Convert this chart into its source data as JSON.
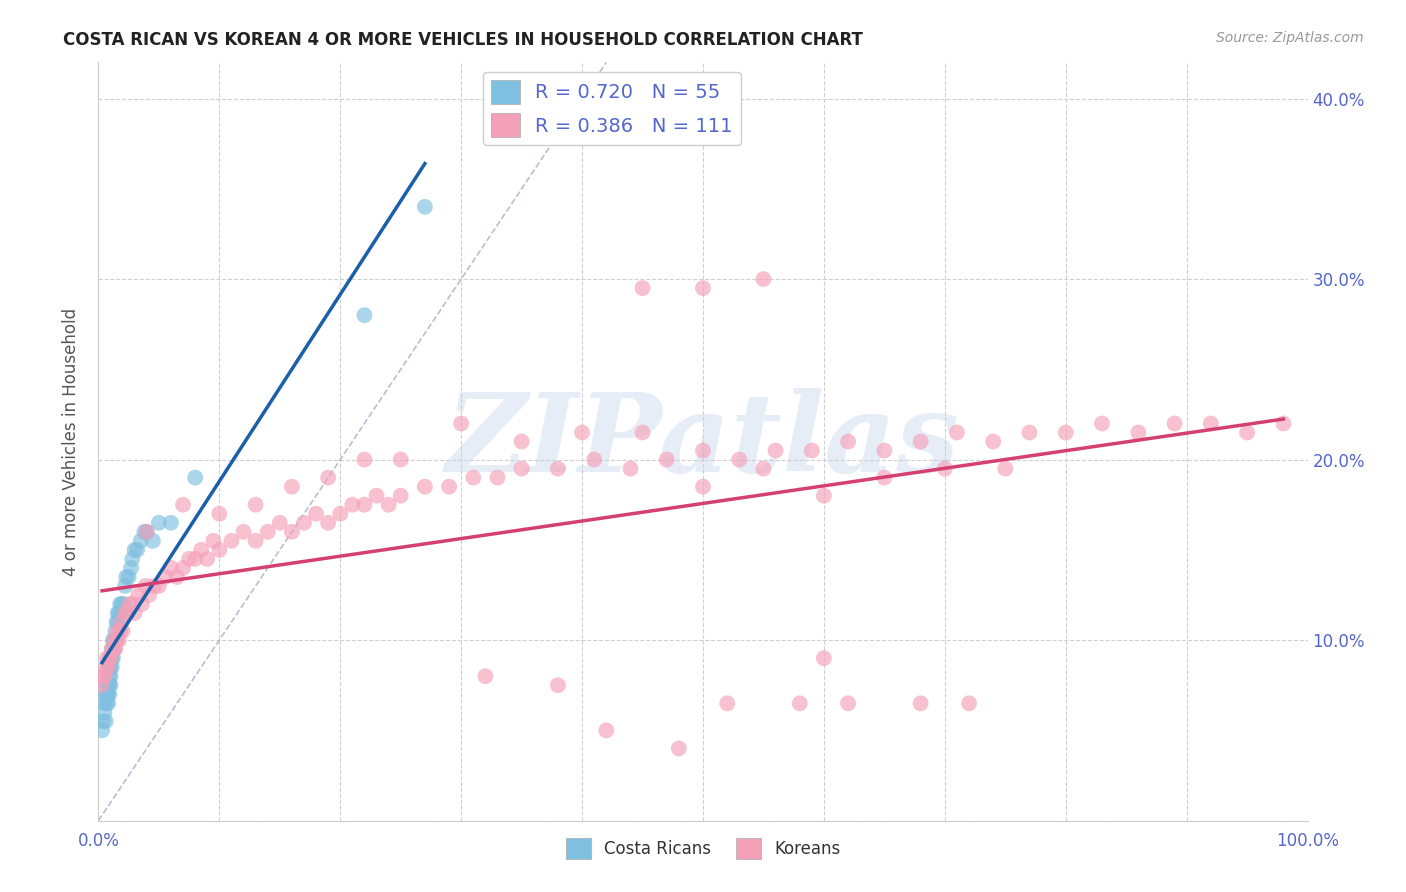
{
  "title": "COSTA RICAN VS KOREAN 4 OR MORE VEHICLES IN HOUSEHOLD CORRELATION CHART",
  "source": "Source: ZipAtlas.com",
  "ylabel": "4 or more Vehicles in Household",
  "watermark": "ZIPatlas",
  "xlim": [
    0.0,
    1.0
  ],
  "ylim": [
    0.0,
    0.42
  ],
  "xticks": [
    0.0,
    0.1,
    0.2,
    0.3,
    0.4,
    0.5,
    0.6,
    0.7,
    0.8,
    0.9,
    1.0
  ],
  "yticks": [
    0.0,
    0.1,
    0.2,
    0.3,
    0.4
  ],
  "xticklabels": [
    "0.0%",
    "",
    "",
    "",
    "",
    "",
    "",
    "",
    "",
    "",
    "100.0%"
  ],
  "yticklabels_right": [
    "",
    "10.0%",
    "20.0%",
    "30.0%",
    "40.0%"
  ],
  "legend_labels": [
    "Costa Ricans",
    "Koreans"
  ],
  "R_costa_rican": 0.72,
  "N_costa_rican": 55,
  "R_korean": 0.386,
  "N_korean": 111,
  "color_blue": "#7fbfdf",
  "color_pink": "#f4a0b8",
  "color_blue_line": "#1a5fa8",
  "color_pink_line": "#d44070",
  "color_title": "#222222",
  "color_axis_right": "#5566cc",
  "background_color": "#ffffff",
  "grid_color": "#d0d0d0",
  "costa_rican_x": [
    0.003,
    0.004,
    0.005,
    0.005,
    0.006,
    0.006,
    0.007,
    0.007,
    0.007,
    0.008,
    0.008,
    0.008,
    0.009,
    0.009,
    0.009,
    0.009,
    0.01,
    0.01,
    0.01,
    0.01,
    0.011,
    0.011,
    0.011,
    0.012,
    0.012,
    0.012,
    0.013,
    0.013,
    0.014,
    0.014,
    0.015,
    0.015,
    0.016,
    0.016,
    0.017,
    0.018,
    0.019,
    0.02,
    0.021,
    0.022,
    0.023,
    0.025,
    0.027,
    0.028,
    0.03,
    0.032,
    0.035,
    0.038,
    0.04,
    0.045,
    0.05,
    0.06,
    0.08,
    0.22,
    0.27
  ],
  "costa_rican_y": [
    0.05,
    0.055,
    0.06,
    0.065,
    0.055,
    0.07,
    0.065,
    0.07,
    0.075,
    0.065,
    0.07,
    0.075,
    0.07,
    0.075,
    0.08,
    0.085,
    0.075,
    0.08,
    0.085,
    0.09,
    0.085,
    0.09,
    0.095,
    0.09,
    0.095,
    0.1,
    0.095,
    0.1,
    0.1,
    0.105,
    0.1,
    0.11,
    0.11,
    0.115,
    0.115,
    0.12,
    0.12,
    0.115,
    0.12,
    0.13,
    0.135,
    0.135,
    0.14,
    0.145,
    0.15,
    0.15,
    0.155,
    0.16,
    0.16,
    0.155,
    0.165,
    0.165,
    0.19,
    0.28,
    0.34
  ],
  "korean_x": [
    0.003,
    0.004,
    0.005,
    0.006,
    0.007,
    0.008,
    0.009,
    0.01,
    0.011,
    0.012,
    0.013,
    0.014,
    0.015,
    0.016,
    0.017,
    0.018,
    0.019,
    0.02,
    0.022,
    0.024,
    0.026,
    0.028,
    0.03,
    0.033,
    0.036,
    0.039,
    0.042,
    0.046,
    0.05,
    0.055,
    0.06,
    0.065,
    0.07,
    0.075,
    0.08,
    0.085,
    0.09,
    0.095,
    0.1,
    0.11,
    0.12,
    0.13,
    0.14,
    0.15,
    0.16,
    0.17,
    0.18,
    0.19,
    0.2,
    0.21,
    0.22,
    0.23,
    0.24,
    0.25,
    0.27,
    0.29,
    0.31,
    0.33,
    0.35,
    0.38,
    0.41,
    0.44,
    0.47,
    0.5,
    0.53,
    0.56,
    0.59,
    0.62,
    0.65,
    0.68,
    0.71,
    0.74,
    0.77,
    0.8,
    0.83,
    0.86,
    0.89,
    0.92,
    0.95,
    0.98,
    0.04,
    0.07,
    0.1,
    0.13,
    0.16,
    0.19,
    0.22,
    0.25,
    0.3,
    0.35,
    0.4,
    0.45,
    0.5,
    0.55,
    0.6,
    0.65,
    0.7,
    0.75,
    0.45,
    0.5,
    0.55,
    0.6,
    0.32,
    0.38,
    0.42,
    0.48,
    0.52,
    0.58,
    0.62,
    0.68,
    0.72
  ],
  "korean_y": [
    0.075,
    0.08,
    0.08,
    0.085,
    0.09,
    0.085,
    0.09,
    0.09,
    0.095,
    0.095,
    0.1,
    0.095,
    0.1,
    0.105,
    0.1,
    0.105,
    0.11,
    0.105,
    0.115,
    0.115,
    0.12,
    0.12,
    0.115,
    0.125,
    0.12,
    0.13,
    0.125,
    0.13,
    0.13,
    0.135,
    0.14,
    0.135,
    0.14,
    0.145,
    0.145,
    0.15,
    0.145,
    0.155,
    0.15,
    0.155,
    0.16,
    0.155,
    0.16,
    0.165,
    0.16,
    0.165,
    0.17,
    0.165,
    0.17,
    0.175,
    0.175,
    0.18,
    0.175,
    0.18,
    0.185,
    0.185,
    0.19,
    0.19,
    0.195,
    0.195,
    0.2,
    0.195,
    0.2,
    0.205,
    0.2,
    0.205,
    0.205,
    0.21,
    0.205,
    0.21,
    0.215,
    0.21,
    0.215,
    0.215,
    0.22,
    0.215,
    0.22,
    0.22,
    0.215,
    0.22,
    0.16,
    0.175,
    0.17,
    0.175,
    0.185,
    0.19,
    0.2,
    0.2,
    0.22,
    0.21,
    0.215,
    0.215,
    0.185,
    0.195,
    0.18,
    0.19,
    0.195,
    0.195,
    0.295,
    0.295,
    0.3,
    0.09,
    0.08,
    0.075,
    0.05,
    0.04,
    0.065,
    0.065,
    0.065,
    0.065,
    0.065
  ]
}
